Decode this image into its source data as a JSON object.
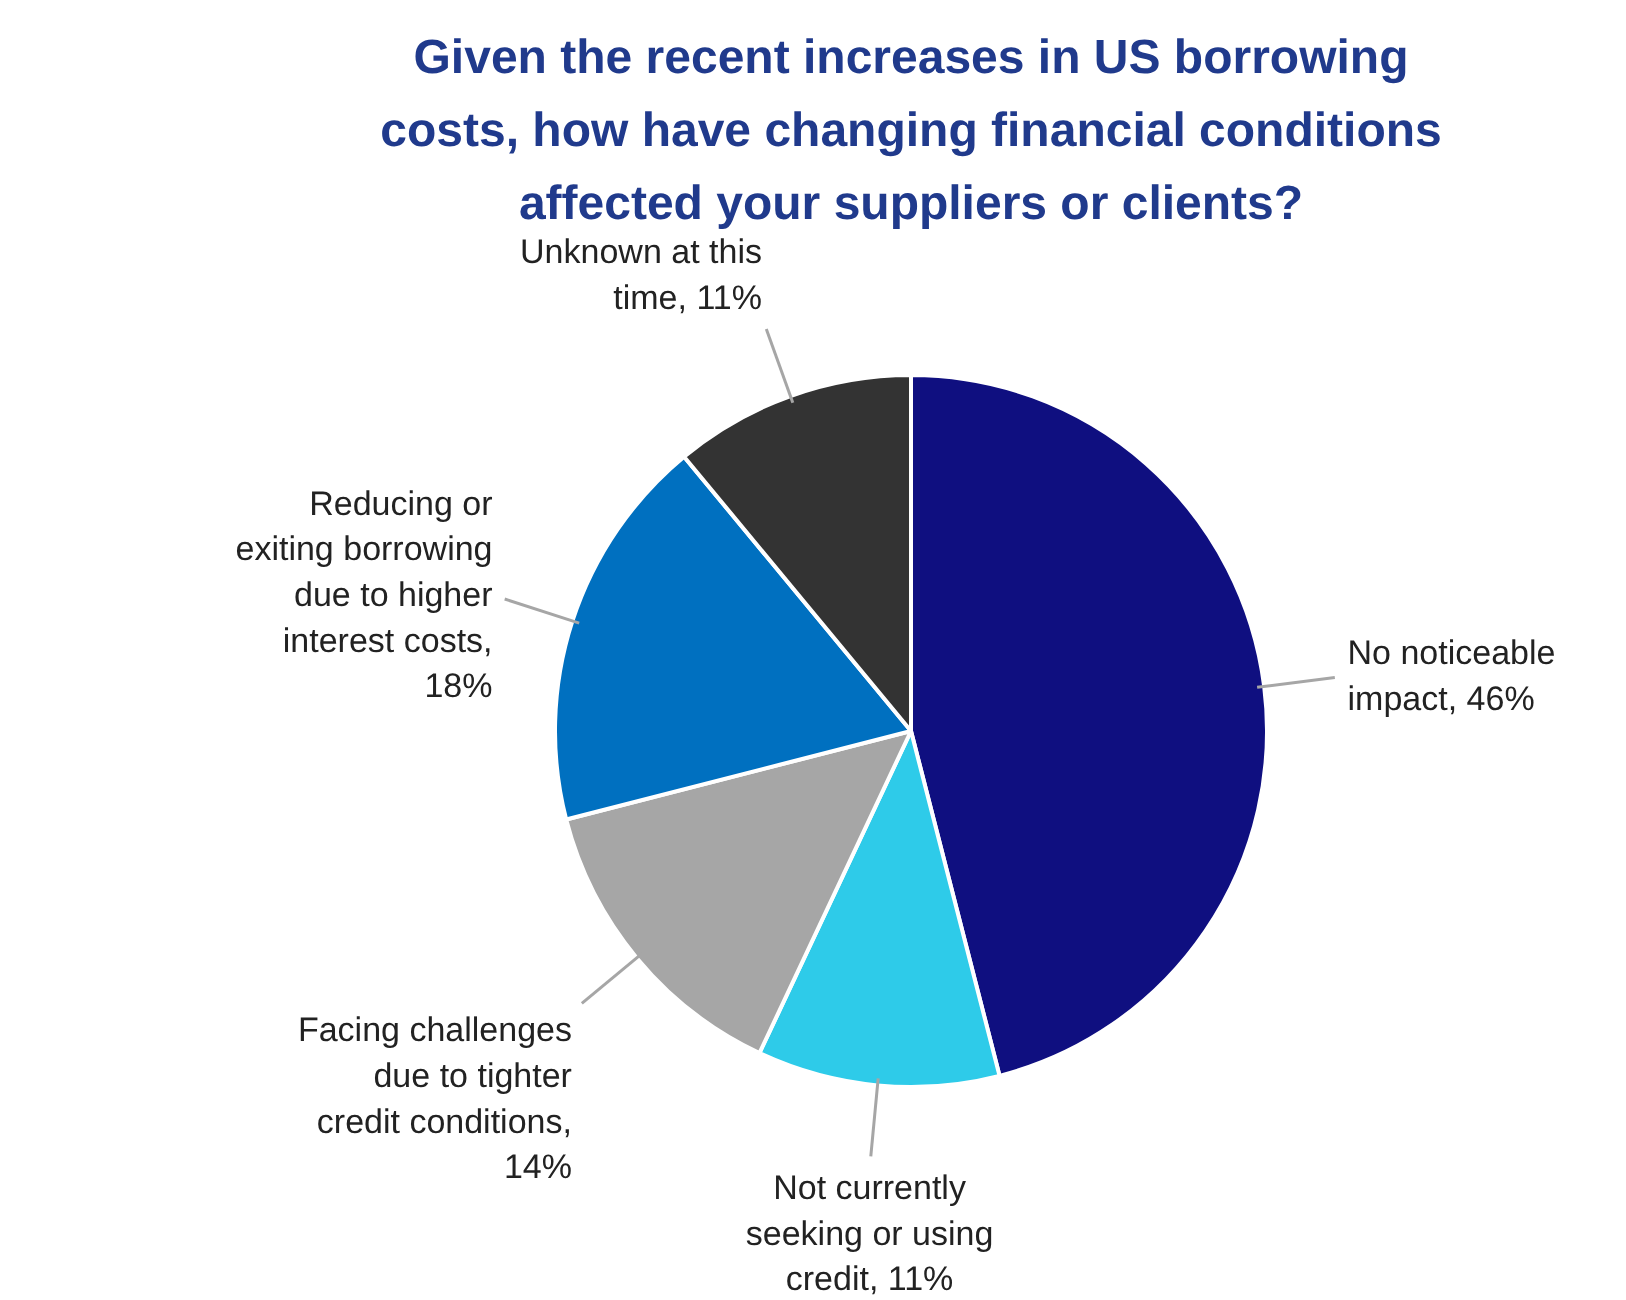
{
  "chart_data": {
    "type": "pie",
    "title": "Given the recent increases in US borrowing costs, how have changing financial conditions affected your suppliers or clients?",
    "categories": [
      "No noticeable impact, 46%",
      "Not currently seeking or using credit, 11%",
      "Facing challenges due to tighter credit conditions, 14%",
      "Reducing or exiting borrowing due to higher interest costs, 18%",
      "Unknown at this time, 11%"
    ],
    "values": [
      46,
      11,
      14,
      18,
      11
    ],
    "colors": [
      "#0f0f80",
      "#2ecbe9",
      "#a6a6a6",
      "#0070c0",
      "#333333"
    ]
  }
}
